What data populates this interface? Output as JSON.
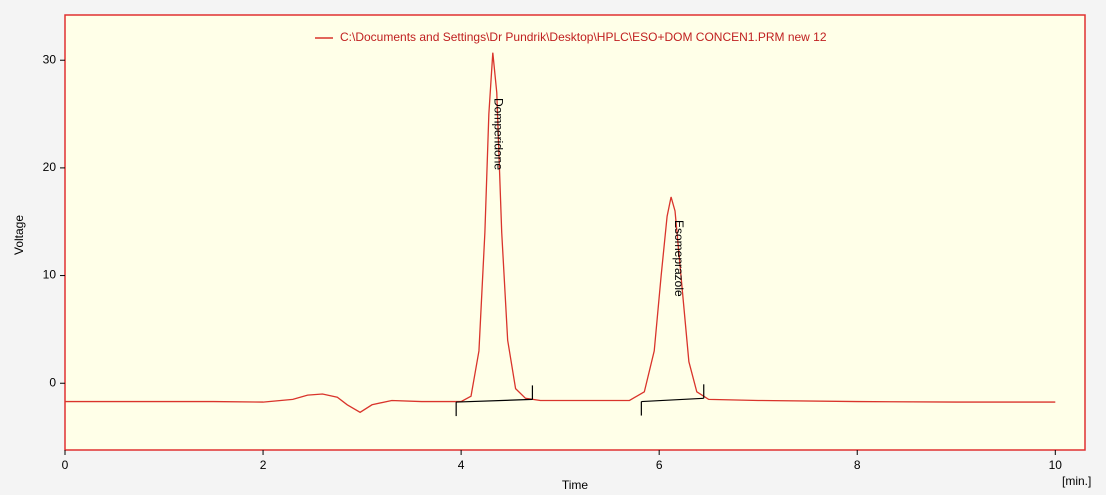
{
  "chart_data": {
    "type": "line",
    "legend_label": "C:\\Documents and Settings\\Dr Pundrik\\Desktop\\HPLC\\ESO+DOM CONCEN1.PRM new 12",
    "x_label": "Time",
    "x_unit": "[min.]",
    "y_label": "Voltage",
    "x": [
      0,
      0.5,
      1,
      1.5,
      2,
      2.3,
      2.45,
      2.6,
      2.75,
      2.85,
      2.98,
      3.1,
      3.3,
      3.6,
      4.0,
      4.1,
      4.18,
      4.24,
      4.28,
      4.32,
      4.36,
      4.41,
      4.47,
      4.55,
      4.65,
      4.8,
      5.2,
      5.7,
      5.85,
      5.95,
      6.02,
      6.08,
      6.12,
      6.16,
      6.22,
      6.3,
      6.38,
      6.5,
      7,
      8,
      9,
      10
    ],
    "series": [
      {
        "name": "C:\\Documents and Settings\\Dr Pundrik\\Desktop\\HPLC\\ESO+DOM CONCEN1.PRM new 12",
        "color": "#d9342b",
        "values": [
          -1.7,
          -1.7,
          -1.7,
          -1.7,
          -1.75,
          -1.5,
          -1.1,
          -1.0,
          -1.3,
          -2.0,
          -2.7,
          -2.0,
          -1.6,
          -1.7,
          -1.7,
          -1.2,
          3,
          14,
          25,
          30.7,
          27,
          14,
          4,
          -0.5,
          -1.4,
          -1.6,
          -1.6,
          -1.6,
          -0.8,
          3,
          10,
          15.5,
          17.3,
          16,
          10,
          2,
          -0.8,
          -1.5,
          -1.6,
          -1.7,
          -1.75,
          -1.75
        ]
      }
    ],
    "peaks": [
      {
        "label": "Domperidone",
        "apex": 4.37,
        "start": 3.95,
        "end": 4.72,
        "start_level": -1.75,
        "end_level": -1.5
      },
      {
        "label": "Esomeprazole",
        "apex": 6.19,
        "start": 5.82,
        "end": 6.45,
        "start_level": -1.7,
        "end_level": -1.4
      }
    ],
    "xlim": [
      0,
      10.3
    ],
    "ylim": [
      -6.2,
      34.2
    ],
    "xticks": [
      0,
      2,
      4,
      6,
      8,
      10
    ],
    "yticks": [
      0,
      10,
      20,
      30
    ],
    "grid": false,
    "background": "#ffffe8",
    "frame_color": "#e03030"
  }
}
